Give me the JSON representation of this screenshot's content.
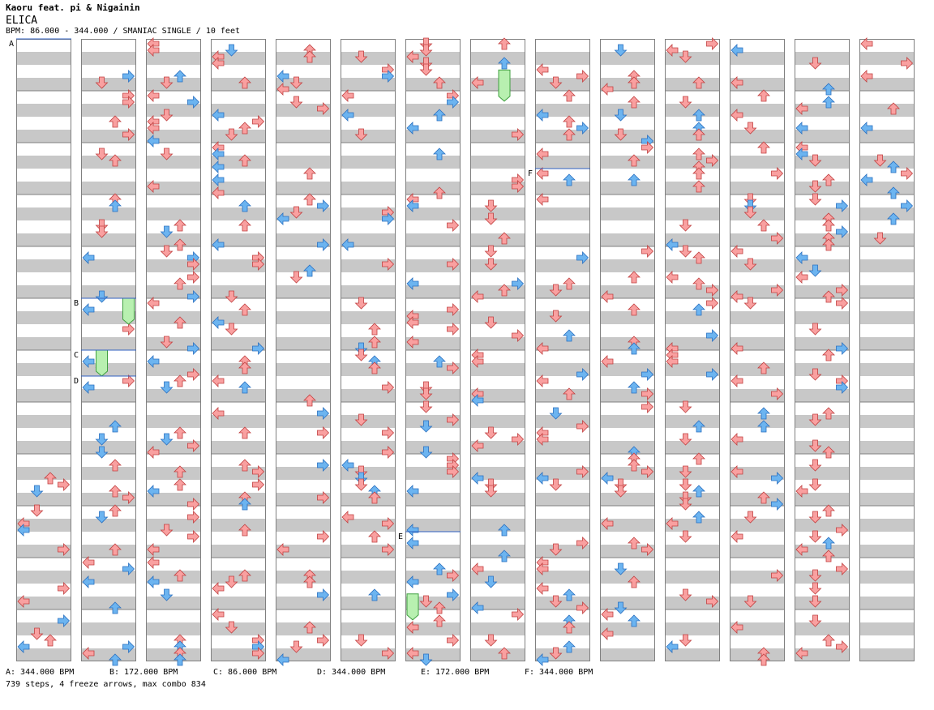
{
  "header": {
    "artist": "Kaoru feat. pi & Nigainin",
    "title": "ELICA",
    "meta": "BPM: 86.000 - 344.000 / SMANIAC SINGLE / 10 feet"
  },
  "colors": {
    "red": "#f9a0a0",
    "blue": "#6cb4f0",
    "pink": "#f0b0f0",
    "freeze": "#b8f0b0",
    "stripe": "#c8c8c8",
    "marker": "#3060c0"
  },
  "bpm_markers": [
    {
      "label": "A",
      "column": 0,
      "position": 0.0
    },
    {
      "label": "B",
      "column": 1,
      "position": 5.0
    },
    {
      "label": "C",
      "column": 1,
      "position": 6.0
    },
    {
      "label": "D",
      "column": 1,
      "position": 6.5
    },
    {
      "label": "E",
      "column": 6,
      "position": 9.5
    },
    {
      "label": "F",
      "column": 8,
      "position": 2.5
    }
  ],
  "bpm_legend": [
    "A: 344.000 BPM",
    "B: 172.000 BPM",
    "C: 86.000 BPM",
    "D: 344.000 BPM",
    "E: 172.000 BPM",
    "F: 344.000 BPM"
  ],
  "freezes": [
    {
      "column": 1,
      "lane": 3,
      "start": 5.0,
      "end": 5.5
    },
    {
      "column": 1,
      "lane": 1,
      "start": 6.0,
      "end": 6.5
    },
    {
      "column": 6,
      "lane": 0,
      "start": 10.7,
      "end": 11.2
    },
    {
      "column": 7,
      "lane": 2,
      "start": 0.6,
      "end": 1.2
    }
  ],
  "stats": "739 steps, 4 freeze arrows, max combo 834"
}
